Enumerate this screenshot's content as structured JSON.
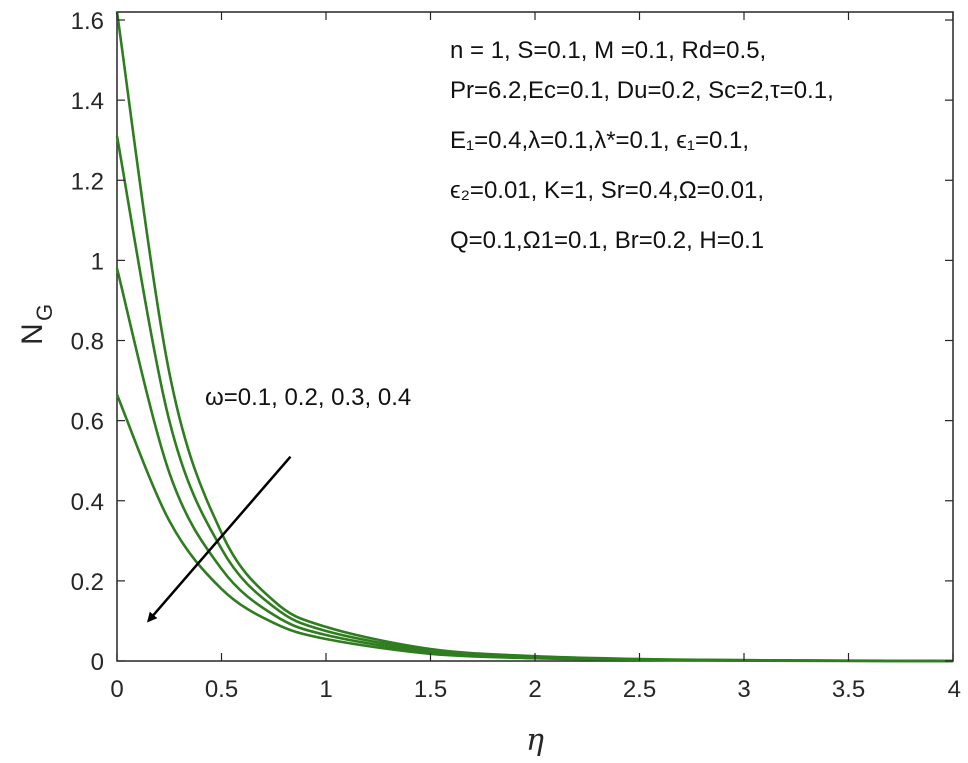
{
  "chart_data": {
    "type": "line",
    "xlabel": "η",
    "ylabel": {
      "main": "N",
      "sub": "G"
    },
    "xlim": [
      0,
      4
    ],
    "ylim": [
      0,
      1.62
    ],
    "xticks": [
      0,
      0.5,
      1,
      1.5,
      2,
      2.5,
      3,
      3.5,
      4
    ],
    "xtick_labels": [
      "0",
      "0.5",
      "1",
      "1.5",
      "2",
      "2.5",
      "3",
      "3.5",
      "4"
    ],
    "yticks": [
      0,
      0.2,
      0.4,
      0.6,
      0.8,
      1,
      1.2,
      1.4,
      1.6
    ],
    "ytick_labels": [
      "0",
      "0.2",
      "0.4",
      "0.6",
      "0.8",
      "1",
      "1.2",
      "1.4",
      "1.6"
    ],
    "grid": false,
    "line_color": "#2e7d1f",
    "series": [
      {
        "omega": 0.1,
        "x": [
          0,
          0.25,
          0.5,
          0.75,
          1,
          1.5,
          2,
          2.5,
          3,
          4
        ],
        "y": [
          1.62,
          0.72,
          0.32,
          0.15,
          0.085,
          0.03,
          0.012,
          0.005,
          0.002,
          0.0
        ]
      },
      {
        "omega": 0.2,
        "x": [
          0,
          0.25,
          0.5,
          0.75,
          1,
          1.5,
          2,
          2.5,
          3,
          4
        ],
        "y": [
          1.31,
          0.6,
          0.28,
          0.135,
          0.075,
          0.026,
          0.01,
          0.004,
          0.002,
          0.0
        ]
      },
      {
        "omega": 0.3,
        "x": [
          0,
          0.25,
          0.5,
          0.75,
          1,
          1.5,
          2,
          2.5,
          3,
          4
        ],
        "y": [
          0.98,
          0.47,
          0.23,
          0.115,
          0.065,
          0.022,
          0.009,
          0.004,
          0.001,
          0.0
        ]
      },
      {
        "omega": 0.4,
        "x": [
          0,
          0.25,
          0.5,
          0.75,
          1,
          1.5,
          2,
          2.5,
          3,
          4
        ],
        "y": [
          0.665,
          0.35,
          0.18,
          0.095,
          0.055,
          0.018,
          0.007,
          0.003,
          0.001,
          0.0
        ]
      }
    ],
    "arrow": {
      "from": [
        0.83,
        0.51
      ],
      "to": [
        0.15,
        0.1
      ],
      "label": "ω=0.1, 0.2, 0.3, 0.4"
    },
    "annotation_lines": [
      "n = 1, S=0.1, M =0.1, Rd=0.5,",
      "Pr=6.2,Ec=0.1, Du=0.2, Sc=2,τ=0.1,",
      "E₁=0.4,λ=0.1,λ*=0.1, ϵ₁=0.1,",
      "ϵ₂=0.01, K=1, Sr=0.4,Ω=0.01,",
      "Q=0.1,Ω1=0.1, Br=0.2, H=0.1"
    ]
  }
}
